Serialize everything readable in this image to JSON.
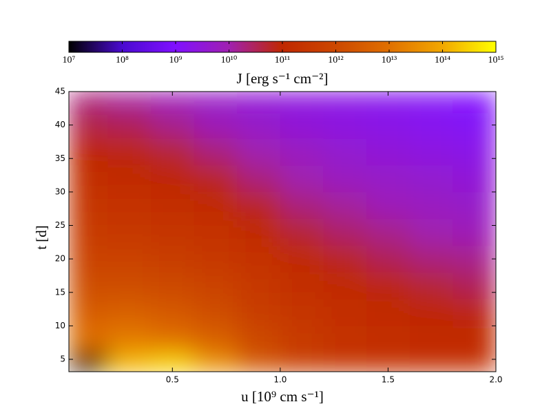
{
  "chart_data": {
    "type": "heatmap",
    "colorbar_label": "J [erg s⁻¹ cm⁻²]",
    "xlabel": "u [10⁹ cm s⁻¹]",
    "ylabel": "t [d]",
    "x": [
      0.1,
      0.3,
      0.5,
      0.7,
      0.9,
      1.1,
      1.3,
      1.5,
      1.7,
      1.9
    ],
    "y": [
      4,
      8,
      12,
      16,
      20,
      24,
      28,
      32,
      36,
      40,
      44
    ],
    "z": [
      [
        10000000.0,
        160000000000000.0,
        320000000000000.0,
        40000000000000.0,
        2000000000000.0,
        500000000000.0,
        250000000000.0,
        200000000000.0,
        160000000000.0,
        160000000000.0
      ],
      [
        10000000000000.0,
        16000000000000.0,
        10000000000000.0,
        4000000000000.0,
        1000000000000.0,
        400000000000.0,
        200000000000.0,
        160000000000.0,
        130000000000.0,
        130000000000.0
      ],
      [
        3200000000000.0,
        4000000000000.0,
        2500000000000.0,
        1300000000000.0,
        500000000000.0,
        250000000000.0,
        160000000000.0,
        130000000000.0,
        100000000000.0,
        80000000000.0
      ],
      [
        1300000000000.0,
        1300000000000.0,
        1000000000000.0,
        630000000000.0,
        320000000000.0,
        160000000000.0,
        130000000000.0,
        80000000000.0,
        50000000000.0,
        32000000000.0
      ],
      [
        630000000000.0,
        630000000000.0,
        500000000000.0,
        320000000000.0,
        200000000000.0,
        130000000000.0,
        63000000000.0,
        32000000000.0,
        20000000000.0,
        16000000000.0
      ],
      [
        400000000000.0,
        320000000000.0,
        250000000000.0,
        200000000000.0,
        130000000000.0,
        50000000000.0,
        25000000000.0,
        16000000000.0,
        10000000000.0,
        8000000000.0
      ],
      [
        250000000000.0,
        200000000000.0,
        160000000000.0,
        130000000000.0,
        63000000000.0,
        20000000000.0,
        13000000000.0,
        8000000000.0,
        6300000000.0,
        5000000000.0
      ],
      [
        160000000000.0,
        130000000000.0,
        100000000000.0,
        63000000000.0,
        20000000000.0,
        10000000000.0,
        6300000000.0,
        5000000000.0,
        4000000000.0,
        3200000000.0
      ],
      [
        100000000000.0,
        80000000000.0,
        50000000000.0,
        20000000000.0,
        10000000000.0,
        6300000000.0,
        4000000000.0,
        3200000000.0,
        2500000000.0,
        2000000000.0
      ],
      [
        40000000000.0,
        32000000000.0,
        16000000000.0,
        8000000000.0,
        5000000000.0,
        3200000000.0,
        2500000000.0,
        2000000000.0,
        1600000000.0,
        1300000000.0
      ],
      [
        20000000000.0,
        13000000000.0,
        8000000000.0,
        5000000000.0,
        3200000000.0,
        2500000000.0,
        2000000000.0,
        1600000000.0,
        1300000000.0,
        1000000000.0
      ]
    ],
    "xlim": [
      0.02,
      2
    ],
    "xticks": [
      0.5,
      {
        "value": 1,
        "label": "1.0"
      },
      1.5,
      {
        "value": 2,
        "label": "2.0"
      }
    ],
    "ylim": [
      3.15,
      45
    ],
    "yticks": [
      5,
      10,
      15,
      20,
      25,
      30,
      35,
      40,
      45
    ],
    "clim": [
      10000000.0,
      1000000000000000.0
    ],
    "color_scale": "log",
    "cticks": [
      {
        "value": 10000000.0,
        "label": "10⁷"
      },
      {
        "value": 100000000.0,
        "label": "10⁸"
      },
      {
        "value": 1000000000.0,
        "label": "10⁹"
      },
      {
        "value": 10000000000.0,
        "label": "10¹⁰"
      },
      {
        "value": 100000000000.0,
        "label": "10¹¹"
      },
      {
        "value": 1000000000000.0,
        "label": "10¹²"
      },
      {
        "value": 10000000000000.0,
        "label": "10¹³"
      },
      {
        "value": 100000000000000.0,
        "label": "10¹⁴"
      },
      {
        "value": 1000000000000000.0,
        "label": "10¹⁵"
      }
    ],
    "colormap": [
      "#000000",
      "#4a0ad0",
      "#8010ff",
      "#a020b0",
      "#c02800",
      "#cc4800",
      "#e07000",
      "#f2a800",
      "#ffff00"
    ]
  }
}
